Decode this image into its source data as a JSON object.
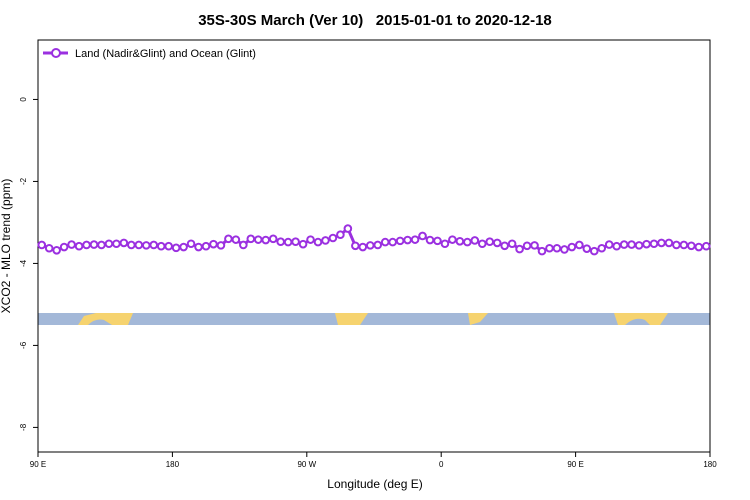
{
  "chart_data": {
    "type": "line",
    "title": "35S-30S March (Ver 10)   2015-01-01 to 2020-12-18",
    "xlabel": "Longitude (deg E)",
    "ylabel": "XCO2 - MLO trend (ppm)",
    "xlim": [
      90,
      540
    ],
    "ylim": [
      -8.6,
      1.45
    ],
    "xticks": [
      {
        "value": 90,
        "label": "90 E"
      },
      {
        "value": 180,
        "label": "180"
      },
      {
        "value": 270,
        "label": "90 W"
      },
      {
        "value": 360,
        "label": "0"
      },
      {
        "value": 450,
        "label": "90 E"
      },
      {
        "value": 540,
        "label": "180"
      }
    ],
    "yticks": [
      0,
      -2,
      -4,
      -6,
      -8
    ],
    "legend": "top-left",
    "x": [
      92.5,
      97.5,
      102.5,
      107.5,
      112.5,
      117.5,
      122.5,
      127.5,
      132.5,
      137.5,
      142.5,
      147.5,
      152.5,
      157.5,
      162.5,
      167.5,
      172.5,
      177.5,
      182.5,
      187.5,
      192.5,
      197.5,
      202.5,
      207.5,
      212.5,
      217.5,
      222.5,
      227.5,
      232.5,
      237.5,
      242.5,
      247.5,
      252.5,
      257.5,
      262.5,
      267.5,
      272.5,
      277.5,
      282.5,
      287.5,
      292.5,
      297.5,
      302.5,
      307.5,
      312.5,
      317.5,
      322.5,
      327.5,
      332.5,
      337.5,
      342.5,
      347.5,
      352.5,
      357.5,
      362.5,
      367.5,
      372.5,
      377.5,
      382.5,
      387.5,
      392.5,
      397.5,
      402.5,
      407.5,
      412.5,
      417.5,
      422.5,
      427.5,
      432.5,
      437.5,
      442.5,
      447.5,
      452.5,
      457.5,
      462.5,
      467.5,
      472.5,
      477.5,
      482.5,
      487.5,
      492.5,
      497.5,
      502.5,
      507.5,
      512.5,
      517.5,
      522.5,
      527.5,
      532.5,
      537.5
    ],
    "series": [
      {
        "name": "Land (Nadir&Glint) and Ocean (Glint)",
        "color": "#9b30e0",
        "values": [
          -3.55,
          -3.63,
          -3.68,
          -3.6,
          -3.54,
          -3.58,
          -3.55,
          -3.54,
          -3.55,
          -3.52,
          -3.52,
          -3.5,
          -3.55,
          -3.55,
          -3.56,
          -3.55,
          -3.58,
          -3.58,
          -3.62,
          -3.6,
          -3.52,
          -3.6,
          -3.58,
          -3.53,
          -3.56,
          -3.4,
          -3.42,
          -3.55,
          -3.4,
          -3.42,
          -3.43,
          -3.4,
          -3.47,
          -3.48,
          -3.47,
          -3.53,
          -3.42,
          -3.48,
          -3.44,
          -3.38,
          -3.3,
          -3.15,
          -3.57,
          -3.6,
          -3.56,
          -3.55,
          -3.48,
          -3.48,
          -3.45,
          -3.43,
          -3.42,
          -3.33,
          -3.43,
          -3.45,
          -3.52,
          -3.42,
          -3.46,
          -3.48,
          -3.44,
          -3.52,
          -3.47,
          -3.5,
          -3.57,
          -3.52,
          -3.65,
          -3.57,
          -3.56,
          -3.7,
          -3.63,
          -3.63,
          -3.66,
          -3.6,
          -3.55,
          -3.64,
          -3.7,
          -3.63,
          -3.54,
          -3.58,
          -3.54,
          -3.54,
          -3.56,
          -3.53,
          -3.52,
          -3.5,
          -3.5,
          -3.55,
          -3.55,
          -3.57,
          -3.6,
          -3.58
        ]
      }
    ]
  }
}
